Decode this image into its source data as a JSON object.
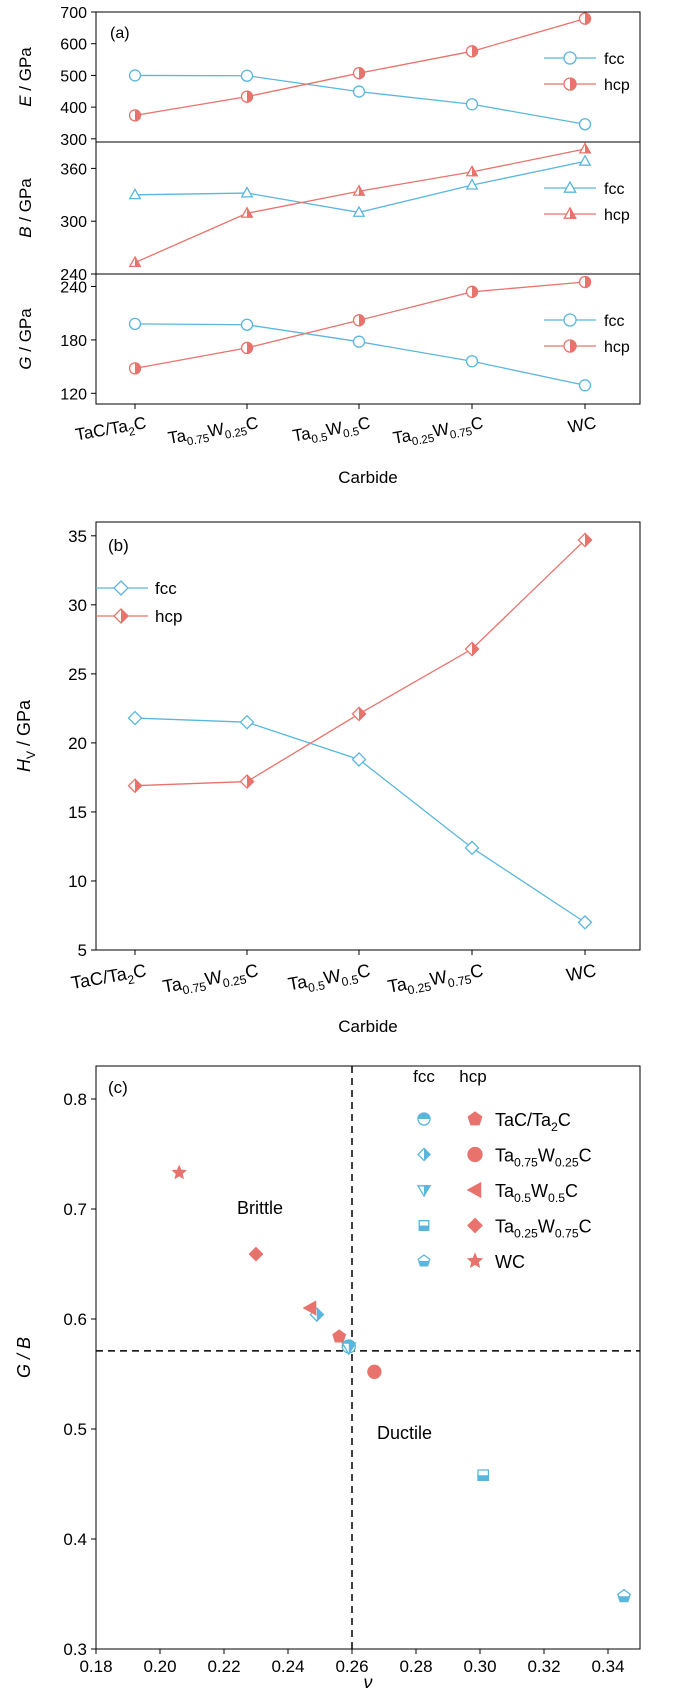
{
  "colors": {
    "fcc": "#5bb6dc",
    "hcp": "#e8736c",
    "axis": "#000000",
    "dash": "#000000"
  },
  "chart_data": [
    {
      "id": "a",
      "type": "line",
      "panel_label": "(a)",
      "xlabel": "Carbide",
      "categories": [
        {
          "base": "TaC/Ta",
          "sub": "2",
          "tail": "C"
        },
        {
          "parts": [
            [
              "Ta",
              ""
            ],
            [
              "0.75",
              "sub"
            ],
            [
              "W",
              ""
            ],
            [
              "0.25",
              "sub"
            ],
            [
              "C",
              ""
            ]
          ]
        },
        {
          "parts": [
            [
              "Ta",
              ""
            ],
            [
              "0.5",
              "sub"
            ],
            [
              "W",
              ""
            ],
            [
              "0.5",
              "sub"
            ],
            [
              "C",
              ""
            ]
          ]
        },
        {
          "parts": [
            [
              "Ta",
              ""
            ],
            [
              "0.25",
              "sub"
            ],
            [
              "W",
              ""
            ],
            [
              "0.75",
              "sub"
            ],
            [
              "C",
              ""
            ]
          ]
        },
        {
          "parts": [
            [
              "WC",
              ""
            ]
          ]
        }
      ],
      "subplots": [
        {
          "ylabel_sym": "E",
          "ylabel_unit": " / GPa",
          "ylim": [
            290,
            700
          ],
          "yticks": [
            300,
            400,
            500,
            600,
            700
          ],
          "series": [
            {
              "name": "fcc",
              "marker": "circle",
              "values": [
                500,
                499,
                449,
                409,
                346
              ]
            },
            {
              "name": "hcp",
              "marker": "circle-half",
              "values": [
                374,
                433,
                507,
                576,
                679
              ]
            }
          ]
        },
        {
          "ylabel_sym": "B",
          "ylabel_unit": " / GPa",
          "ylim": [
            240,
            390
          ],
          "yticks": [
            240,
            300,
            360
          ],
          "series": [
            {
              "name": "fcc",
              "marker": "triangle",
              "values": [
                330,
                332,
                310,
                341,
                368
              ]
            },
            {
              "name": "hcp",
              "marker": "triangle-half",
              "values": [
                253,
                309,
                334,
                356,
                382
              ]
            }
          ]
        },
        {
          "ylabel_sym": "G",
          "ylabel_unit": " / GPa",
          "ylim": [
            108,
            254
          ],
          "yticks": [
            120,
            180,
            240
          ],
          "series": [
            {
              "name": "fcc",
              "marker": "circle",
              "values": [
                198,
                197,
                178,
                156,
                129
              ]
            },
            {
              "name": "hcp",
              "marker": "circle-half",
              "values": [
                148,
                171,
                202,
                234,
                245
              ]
            }
          ]
        }
      ]
    },
    {
      "id": "b",
      "type": "line",
      "panel_label": "(b)",
      "xlabel": "Carbide",
      "ylabel_sym": "H",
      "ylabel_subscript": "V",
      "ylabel_unit": " / GPa",
      "ylim": [
        5,
        36
      ],
      "yticks": [
        5,
        10,
        15,
        20,
        25,
        30,
        35
      ],
      "legend_position": "top-left",
      "series": [
        {
          "name": "fcc",
          "marker": "diamond",
          "values": [
            21.8,
            21.5,
            18.8,
            12.4,
            7.0
          ]
        },
        {
          "name": "hcp",
          "marker": "diamond-half",
          "values": [
            16.9,
            17.2,
            22.1,
            26.8,
            34.7
          ]
        }
      ]
    },
    {
      "id": "c",
      "type": "scatter",
      "panel_label": "(c)",
      "xlabel": "ν",
      "ylabel": "G / B",
      "xlim": [
        0.18,
        0.35
      ],
      "ylim": [
        0.3,
        0.83
      ],
      "xticks": [
        "0.18",
        "0.20",
        "0.22",
        "0.24",
        "0.26",
        "0.28",
        "0.30",
        "0.32",
        "0.34"
      ],
      "yticks": [
        "0.3",
        "0.4",
        "0.5",
        "0.6",
        "0.7",
        "0.8"
      ],
      "ref_lines": {
        "x": 0.26,
        "y": 0.571
      },
      "region_labels": [
        "Brittle",
        "Ductile"
      ],
      "legend_headers": [
        "fcc",
        "hcp"
      ],
      "legend_entries": [
        {
          "fcc_marker": "circle-half-top",
          "hcp_marker": "pentagon",
          "parts": [
            [
              "TaC/Ta",
              ""
            ],
            [
              "2",
              "sub"
            ],
            [
              "C",
              ""
            ]
          ]
        },
        {
          "fcc_marker": "diamond-half",
          "hcp_marker": "circle",
          "parts": [
            [
              "Ta",
              ""
            ],
            [
              "0.75",
              "sub"
            ],
            [
              "W",
              ""
            ],
            [
              "0.25",
              "sub"
            ],
            [
              "C",
              ""
            ]
          ]
        },
        {
          "fcc_marker": "triangle-down-half",
          "hcp_marker": "triangle-left",
          "parts": [
            [
              "Ta",
              ""
            ],
            [
              "0.5",
              "sub"
            ],
            [
              "W",
              ""
            ],
            [
              "0.5",
              "sub"
            ],
            [
              "C",
              ""
            ]
          ]
        },
        {
          "fcc_marker": "square-half",
          "hcp_marker": "diamond",
          "parts": [
            [
              "Ta",
              ""
            ],
            [
              "0.25",
              "sub"
            ],
            [
              "W",
              ""
            ],
            [
              "0.75",
              "sub"
            ],
            [
              "C",
              ""
            ]
          ]
        },
        {
          "fcc_marker": "pentagon-half",
          "hcp_marker": "star",
          "parts": [
            [
              "WC",
              ""
            ]
          ]
        }
      ],
      "points": [
        {
          "phase": "fcc",
          "marker": "circle-half-top",
          "x": 0.259,
          "y": 0.575
        },
        {
          "phase": "fcc",
          "marker": "diamond-half",
          "x": 0.249,
          "y": 0.604
        },
        {
          "phase": "fcc",
          "marker": "triangle-down-half",
          "x": 0.259,
          "y": 0.574
        },
        {
          "phase": "fcc",
          "marker": "square-half",
          "x": 0.301,
          "y": 0.458
        },
        {
          "phase": "fcc",
          "marker": "pentagon-half",
          "x": 0.345,
          "y": 0.348
        },
        {
          "phase": "hcp",
          "marker": "pentagon",
          "x": 0.256,
          "y": 0.584
        },
        {
          "phase": "hcp",
          "marker": "circle",
          "x": 0.267,
          "y": 0.552
        },
        {
          "phase": "hcp",
          "marker": "triangle-left",
          "x": 0.247,
          "y": 0.61
        },
        {
          "phase": "hcp",
          "marker": "diamond",
          "x": 0.23,
          "y": 0.659
        },
        {
          "phase": "hcp",
          "marker": "star",
          "x": 0.206,
          "y": 0.733
        }
      ]
    }
  ]
}
